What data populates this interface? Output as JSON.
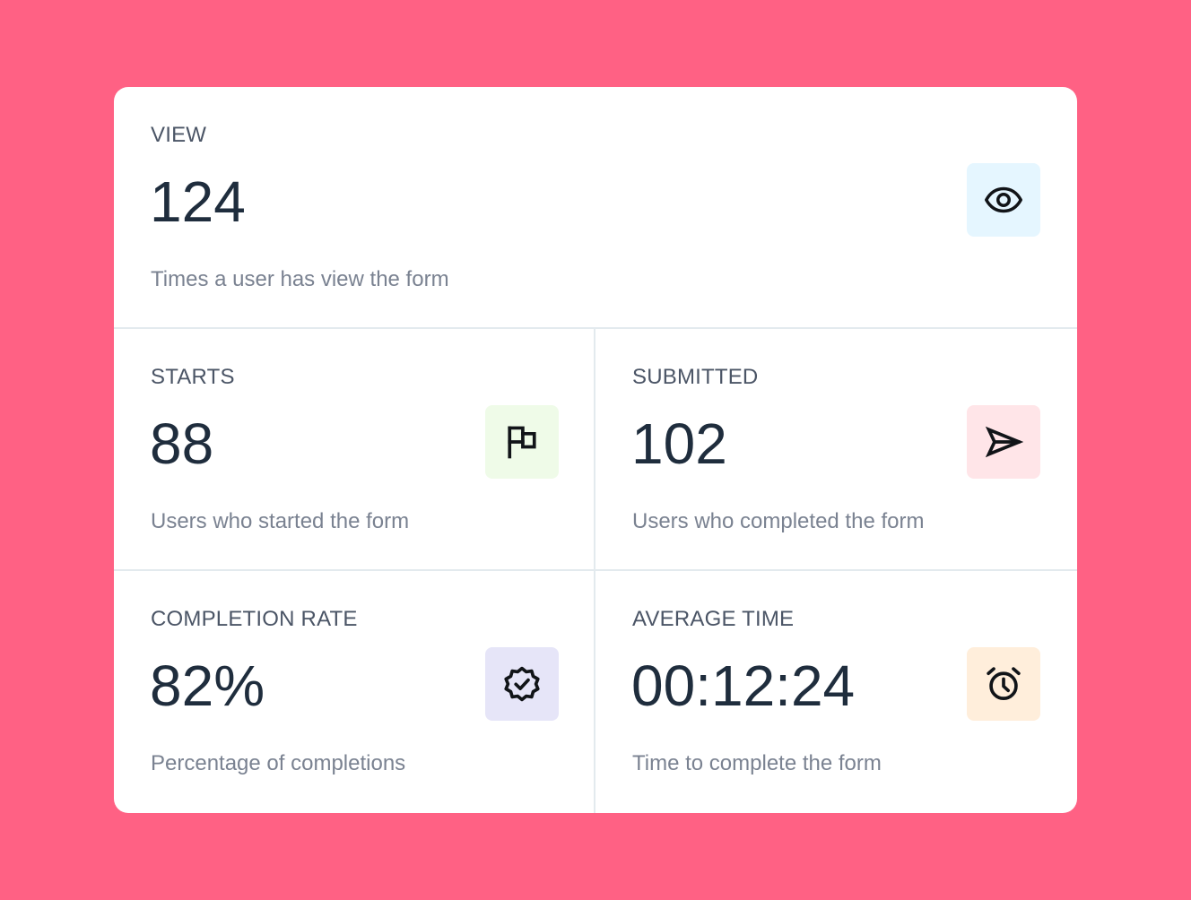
{
  "stats": {
    "view": {
      "label": "VIEW",
      "value": "124",
      "description": "Times a user has view the form",
      "icon": "eye-icon",
      "tile_color": "#E5F6FF"
    },
    "starts": {
      "label": "STARTS",
      "value": "88",
      "description": "Users who started the form",
      "icon": "flag-icon",
      "tile_color": "#EFFBE8"
    },
    "submitted": {
      "label": "SUBMITTED",
      "value": "102",
      "description": "Users who completed the form",
      "icon": "send-icon",
      "tile_color": "#FFE5E8"
    },
    "completion_rate": {
      "label": "COMPLETION RATE",
      "value": "82%",
      "description": "Percentage of completions",
      "icon": "badge-check-icon",
      "tile_color": "#E6E5F8"
    },
    "average_time": {
      "label": "AVERAGE TIME",
      "value": "00:12:24",
      "description": "Time to complete the form",
      "icon": "alarm-clock-icon",
      "tile_color": "#FFEEDB"
    }
  }
}
